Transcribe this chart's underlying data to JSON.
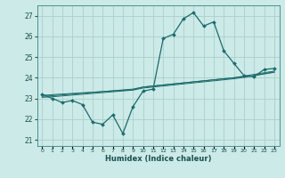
{
  "title": "",
  "xlabel": "Humidex (Indice chaleur)",
  "bg_color": "#cceae7",
  "grid_color": "#aacfcc",
  "line_color": "#1a6b6b",
  "xlim": [
    -0.5,
    23.5
  ],
  "ylim": [
    20.7,
    27.5
  ],
  "yticks": [
    21,
    22,
    23,
    24,
    25,
    26,
    27
  ],
  "xticks": [
    0,
    1,
    2,
    3,
    4,
    5,
    6,
    7,
    8,
    9,
    10,
    11,
    12,
    13,
    14,
    15,
    16,
    17,
    18,
    19,
    20,
    21,
    22,
    23
  ],
  "main_y": [
    23.2,
    23.0,
    22.8,
    22.9,
    22.7,
    21.85,
    21.75,
    22.2,
    21.3,
    22.6,
    23.35,
    23.45,
    25.9,
    26.1,
    26.85,
    27.15,
    26.5,
    26.7,
    25.3,
    24.7,
    24.1,
    24.05,
    24.4,
    24.45
  ],
  "line1_y": [
    23.15,
    23.18,
    23.21,
    23.24,
    23.27,
    23.3,
    23.33,
    23.36,
    23.39,
    23.42,
    23.55,
    23.6,
    23.65,
    23.7,
    23.75,
    23.8,
    23.85,
    23.9,
    23.95,
    24.0,
    24.05,
    24.1,
    24.2,
    24.28
  ],
  "line2_y": [
    23.1,
    23.13,
    23.17,
    23.21,
    23.25,
    23.29,
    23.33,
    23.37,
    23.41,
    23.45,
    23.55,
    23.6,
    23.65,
    23.7,
    23.75,
    23.8,
    23.85,
    23.9,
    23.95,
    24.0,
    24.08,
    24.16,
    24.24,
    24.32
  ],
  "line3_y": [
    23.05,
    23.08,
    23.12,
    23.16,
    23.2,
    23.24,
    23.28,
    23.32,
    23.36,
    23.4,
    23.5,
    23.55,
    23.6,
    23.65,
    23.7,
    23.75,
    23.8,
    23.85,
    23.9,
    23.95,
    24.02,
    24.1,
    24.18,
    24.26
  ]
}
